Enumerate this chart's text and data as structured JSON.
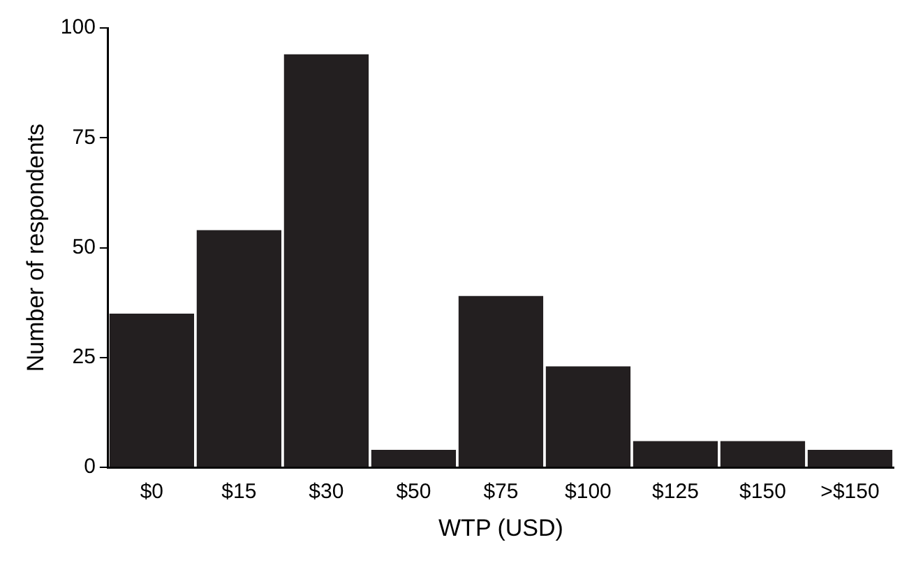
{
  "chart_data": {
    "type": "bar",
    "xlabel": "WTP (USD)",
    "ylabel": "Number of respondents",
    "categories": [
      "$0",
      "$15",
      "$30",
      "$50",
      "$75",
      "$100",
      "$125",
      "$150",
      ">$150"
    ],
    "values": [
      35,
      54,
      94,
      4,
      39,
      23,
      6,
      6,
      4
    ],
    "color": "#231f20",
    "ylim": [
      0,
      100
    ],
    "yticks": [
      0,
      25,
      50,
      75,
      100
    ],
    "grid": false,
    "legend": false
  }
}
